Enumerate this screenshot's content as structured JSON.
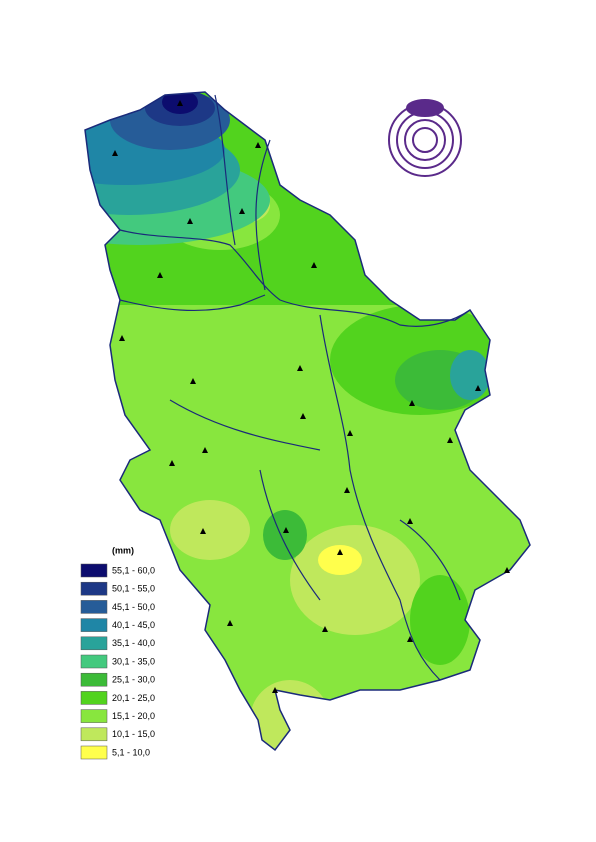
{
  "legend": {
    "unit": "(mm)",
    "items": [
      {
        "label": "55,1 - 60,0",
        "color": "#0c0c6e"
      },
      {
        "label": "50,1 - 55,0",
        "color": "#1d3886"
      },
      {
        "label": "45,1 - 50,0",
        "color": "#265c98"
      },
      {
        "label": "40,1 - 45,0",
        "color": "#1f86a6"
      },
      {
        "label": "35,1 - 40,0",
        "color": "#29a39a"
      },
      {
        "label": "30,1 - 35,0",
        "color": "#43c97e"
      },
      {
        "label": "25,1 - 30,0",
        "color": "#3cbb38"
      },
      {
        "label": "20,1 - 25,0",
        "color": "#52d31e"
      },
      {
        "label": "15,1 - 20,0",
        "color": "#88e63e"
      },
      {
        "label": "10,1 - 15,0",
        "color": "#bfe85c"
      },
      {
        "label": "5,1 - 10,0",
        "color": "#ffff4c"
      }
    ]
  }
}
